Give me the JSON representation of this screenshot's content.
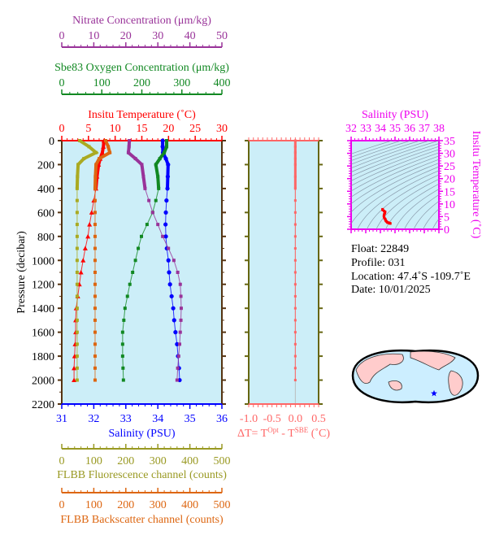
{
  "chart_data": [
    {
      "type": "line",
      "name": "profile",
      "ylabel": "Pressure (decibar)",
      "ylim": [
        0,
        2200
      ],
      "yticks": [
        0,
        200,
        400,
        600,
        800,
        1000,
        1200,
        1400,
        1600,
        1800,
        2000,
        2200
      ],
      "y_reversed": true,
      "pressure": [
        0,
        50,
        100,
        150,
        200,
        300,
        400,
        500,
        600,
        700,
        800,
        900,
        1000,
        1100,
        1200,
        1300,
        1400,
        1500,
        1600,
        1700,
        1800,
        1900,
        2000
      ],
      "axes": {
        "nitrate": {
          "label": "Nitrate Concentration (μm/kg)",
          "range": [
            0,
            50
          ],
          "ticks": [
            0,
            10,
            20,
            30,
            40,
            50
          ],
          "color": "#993399",
          "position": "top"
        },
        "oxygen": {
          "label": "Sbe83 Oxygen Concentration (μm/kg)",
          "range": [
            0,
            400
          ],
          "ticks": [
            0,
            100,
            200,
            300,
            400
          ],
          "color": "#118822",
          "position": "top"
        },
        "temperature": {
          "label": "Insitu Temperature (˚C)",
          "range": [
            0,
            30
          ],
          "ticks": [
            0,
            5,
            10,
            15,
            20,
            25,
            30
          ],
          "color": "#ff0000",
          "position": "top"
        },
        "salinity": {
          "label": "Salinity (PSU)",
          "range": [
            31,
            36
          ],
          "ticks": [
            31,
            32,
            33,
            34,
            35,
            36
          ],
          "color": "#0000ff",
          "position": "bottom"
        },
        "fluorescence": {
          "label": "FLBB Fluorescence channel (counts)",
          "range": [
            0,
            500
          ],
          "ticks": [
            0,
            100,
            200,
            300,
            400,
            500
          ],
          "color": "#999922",
          "position": "bottom"
        },
        "backscatter": {
          "label": "FLBB Backscatter channel (counts)",
          "range": [
            0,
            500
          ],
          "ticks": [
            0,
            100,
            200,
            300,
            400,
            500
          ],
          "color": "#dd6611",
          "position": "bottom"
        }
      },
      "series": [
        {
          "axis": "temperature",
          "color": "#ff0000",
          "marker": "triangle",
          "values": [
            7.9,
            7.8,
            7.6,
            7.2,
            6.9,
            6.6,
            6.4,
            6.0,
            5.6,
            5.2,
            4.9,
            4.4,
            4.0,
            3.6,
            3.3,
            3.0,
            2.7,
            2.6,
            2.6,
            2.5,
            2.4,
            2.3,
            2.3
          ]
        },
        {
          "axis": "salinity",
          "color": "#0000ff",
          "marker": "circle",
          "values": [
            34.15,
            34.15,
            34.16,
            34.25,
            34.32,
            34.31,
            34.3,
            34.27,
            34.25,
            34.24,
            34.25,
            34.28,
            34.33,
            34.35,
            34.38,
            34.43,
            34.48,
            34.51,
            34.55,
            34.6,
            34.63,
            34.66,
            34.68
          ]
        },
        {
          "axis": "oxygen",
          "color": "#118822",
          "marker": "square",
          "values": [
            262,
            262,
            256,
            245,
            235,
            240,
            242,
            235,
            227,
            213,
            199,
            191,
            184,
            177,
            170,
            164,
            158,
            155,
            152,
            152,
            152,
            153,
            154
          ]
        },
        {
          "axis": "nitrate",
          "color": "#993399",
          "marker": "square",
          "values": [
            21.1,
            21.0,
            20.8,
            23,
            25,
            25.5,
            26,
            27.2,
            28.4,
            30,
            31.5,
            33.3,
            35,
            36.2,
            37,
            37.2,
            37.3,
            37.2,
            37,
            36.8,
            36.5,
            36.2,
            36
          ]
        },
        {
          "axis": "fluorescence",
          "color": "#aaaa22",
          "marker": "square",
          "values": [
            56,
            85,
            107,
            69,
            51,
            49,
            48,
            48,
            48,
            48,
            48,
            48,
            48,
            48,
            48,
            48,
            48,
            48,
            48,
            48,
            48,
            48,
            48
          ]
        },
        {
          "axis": "backscatter",
          "color": "#dd6611",
          "marker": "square",
          "values": [
            137,
            145,
            150,
            117,
            107,
            105,
            104,
            104,
            104,
            104,
            104,
            104,
            104,
            104,
            104,
            104,
            104,
            104,
            104,
            104,
            104,
            104,
            104
          ]
        }
      ]
    },
    {
      "type": "line",
      "name": "delta-t",
      "xlabel": "ΔT= T",
      "xlabel_sup1": "Opt",
      "xlabel_mid": " - T",
      "xlabel_sup2": "SBE",
      "xlabel_end": " (˚C)",
      "xlim": [
        -1.0,
        0.5
      ],
      "xticks": [
        "-1.0",
        "-0.5",
        "0.0",
        "0.5"
      ],
      "color": "#ff6666",
      "values": [
        0,
        0,
        0,
        0,
        0,
        0,
        0,
        0,
        0,
        0,
        0,
        0,
        0,
        0,
        0,
        0,
        0,
        0,
        0,
        0,
        0,
        0,
        0
      ]
    },
    {
      "type": "scatter",
      "name": "ts-diagram",
      "xlabel": "Salinity (PSU)",
      "ylabel": "Insitu Temperature (˚C)",
      "xlim": [
        32,
        38
      ],
      "ylim": [
        0,
        35
      ],
      "xticks": [
        32,
        33,
        34,
        35,
        36,
        37,
        38
      ],
      "yticks": [
        0,
        5,
        10,
        15,
        20,
        25,
        30,
        35
      ],
      "color": "#ee00ee",
      "point_color": "#ff0000"
    }
  ],
  "info": {
    "float": "Float:  22849",
    "profile": "Profile:  031",
    "location": "Location:  47.4˚S  -109.7˚E",
    "date": "Date:  10/01/2025"
  },
  "map": {
    "marker": "star",
    "marker_color": "#0000ff",
    "land_color": "#ffcccc",
    "ocean_color": "#cceeff"
  },
  "colors": {
    "plot_bg": "#cceef8",
    "frame": "#553311"
  }
}
